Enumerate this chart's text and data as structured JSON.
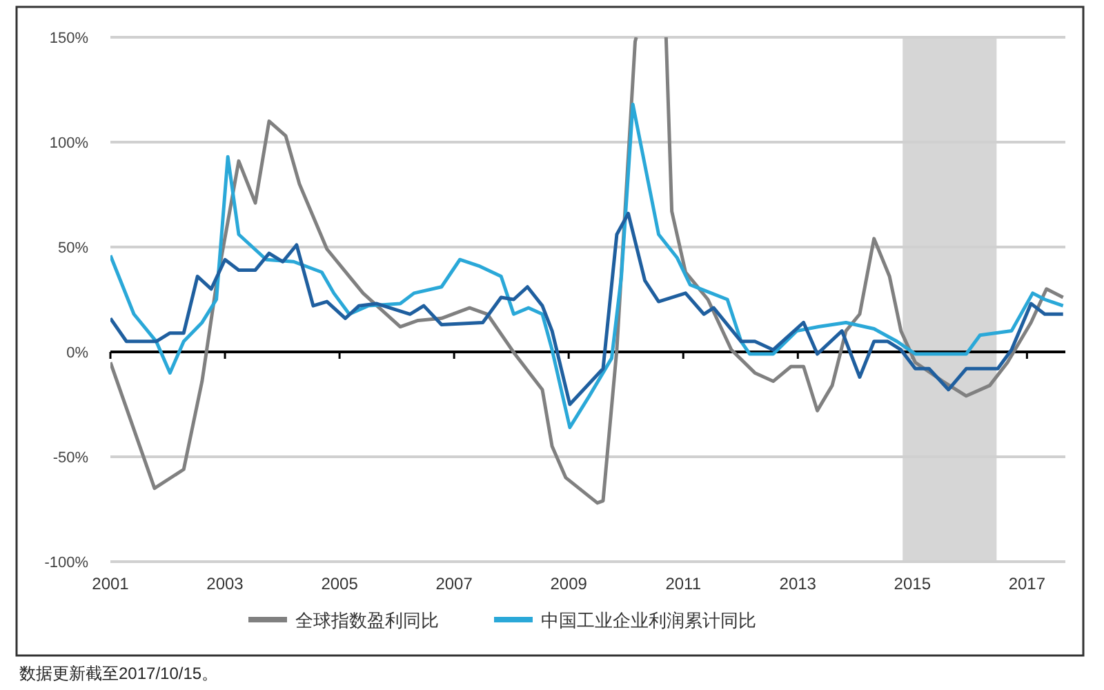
{
  "chart_data": {
    "type": "line",
    "xlim": [
      2001,
      2017.67
    ],
    "ylim": [
      -100,
      150
    ],
    "xticks": [
      2001,
      2003,
      2005,
      2007,
      2009,
      2011,
      2013,
      2015,
      2017
    ],
    "yticks": [
      {
        "value": -100,
        "label": "-100%"
      },
      {
        "value": -50,
        "label": "-50%"
      },
      {
        "value": 0,
        "label": "0%"
      },
      {
        "value": 50,
        "label": "50%"
      },
      {
        "value": 100,
        "label": "100%"
      },
      {
        "value": 150,
        "label": "150%"
      }
    ],
    "grid": "y",
    "legend": "bottom",
    "line_style": "solid",
    "bands": [
      {
        "axis": "x",
        "from": 2014.83,
        "to": 2016.47,
        "color": "#d6d6d6"
      }
    ],
    "annotations": [
      "数据更新截至2017/10/15。"
    ],
    "series": [
      {
        "name": "全球指数盈利同比",
        "color": "#808080",
        "x": [
          2001.0,
          2001.77,
          2002.28,
          2002.6,
          2002.85,
          2003.05,
          2003.24,
          2003.53,
          2003.77,
          2004.06,
          2004.3,
          2004.78,
          2005.41,
          2006.06,
          2006.37,
          2006.78,
          2007.27,
          2007.58,
          2008.06,
          2008.54,
          2008.71,
          2008.95,
          2009.5,
          2009.6,
          2009.84,
          2010.16,
          2010.18
        ],
        "values": [
          -5,
          -65,
          -56,
          -14,
          32,
          62,
          91,
          71,
          110,
          103,
          80,
          49,
          28,
          12,
          15,
          16,
          21,
          18,
          -1,
          -18,
          -45,
          -60,
          -72,
          -71,
          1,
          148,
          150
        ]
      },
      {
        "color": "#808080",
        "x": [
          2010.7,
          2010.8,
          2011.04,
          2011.43,
          2011.84,
          2012.25,
          2012.57,
          2012.88,
          2013.1,
          2013.34,
          2013.6,
          2013.84,
          2014.08,
          2014.33,
          2014.6,
          2014.8,
          2015.05,
          2015.53,
          2015.94,
          2016.35,
          2016.66,
          2017.07,
          2017.34,
          2017.63
        ],
        "values": [
          150,
          67,
          38,
          25,
          1,
          -10,
          -14,
          -7,
          -7,
          -28,
          -16,
          10,
          18,
          54,
          36,
          10,
          -5,
          -14,
          -21,
          -16,
          -5,
          14,
          30,
          26
        ]
      },
      {
        "name": "中国工业企业利润累计同比",
        "color": "#2aa8d8",
        "x": [
          2001.0,
          2001.41,
          2001.8,
          2002.04,
          2002.28,
          2002.6,
          2002.85,
          2003.05,
          2003.24,
          2003.72,
          2004.2,
          2004.69,
          2004.9,
          2005.17,
          2005.5,
          2006.06,
          2006.3,
          2006.78,
          2007.1,
          2007.43,
          2007.82,
          2008.04,
          2008.3,
          2008.54,
          2008.71,
          2009.02,
          2009.36,
          2009.75,
          2009.92,
          2010.12,
          2010.57,
          2010.89,
          2011.12,
          2011.77,
          2012.01,
          2012.16,
          2012.57,
          2012.98,
          2013.36,
          2013.84,
          2014.33,
          2014.73,
          2015.05,
          2015.94,
          2016.18,
          2016.73,
          2017.1,
          2017.31,
          2017.63
        ],
        "values": [
          46,
          18,
          5,
          -10,
          5,
          14,
          25,
          93,
          56,
          44,
          43,
          38,
          28,
          18,
          22,
          23,
          28,
          31,
          44,
          41,
          36,
          18,
          21,
          18,
          1,
          -36,
          -21,
          -3,
          36,
          118,
          56,
          45,
          32,
          25,
          5,
          -1,
          -1,
          10,
          12,
          14,
          11,
          5,
          -1,
          -1,
          8,
          10,
          28,
          25,
          22
        ]
      },
      {
        "color": "#1f5f9f",
        "x": [
          2001.0,
          2001.28,
          2001.8,
          2002.04,
          2002.28,
          2002.52,
          2002.76,
          2003.0,
          2003.24,
          2003.53,
          2003.77,
          2004.01,
          2004.25,
          2004.54,
          2004.78,
          2005.1,
          2005.34,
          2005.65,
          2006.23,
          2006.47,
          2006.78,
          2007.5,
          2007.82,
          2008.04,
          2008.28,
          2008.54,
          2008.71,
          2009.02,
          2009.6,
          2009.84,
          2010.04,
          2010.33,
          2010.57,
          2011.04,
          2011.36,
          2011.53,
          2012.01,
          2012.25,
          2012.57,
          2013.1,
          2013.34,
          2013.77,
          2014.08,
          2014.33,
          2014.57,
          2014.8,
          2015.05,
          2015.29,
          2015.63,
          2015.94,
          2016.49,
          2016.73,
          2017.07,
          2017.31,
          2017.63
        ],
        "values": [
          16,
          5,
          5,
          9,
          9,
          36,
          30,
          44,
          39,
          39,
          47,
          43,
          51,
          22,
          24,
          16,
          22,
          23,
          18,
          22,
          13,
          14,
          26,
          25,
          31,
          22,
          10,
          -25,
          -8,
          56,
          66,
          34,
          24,
          28,
          18,
          21,
          5,
          5,
          1,
          14,
          -1,
          10,
          -12,
          5,
          5,
          1,
          -8,
          -8,
          -18,
          -8,
          -8,
          1,
          23,
          18,
          18
        ]
      }
    ]
  }
}
